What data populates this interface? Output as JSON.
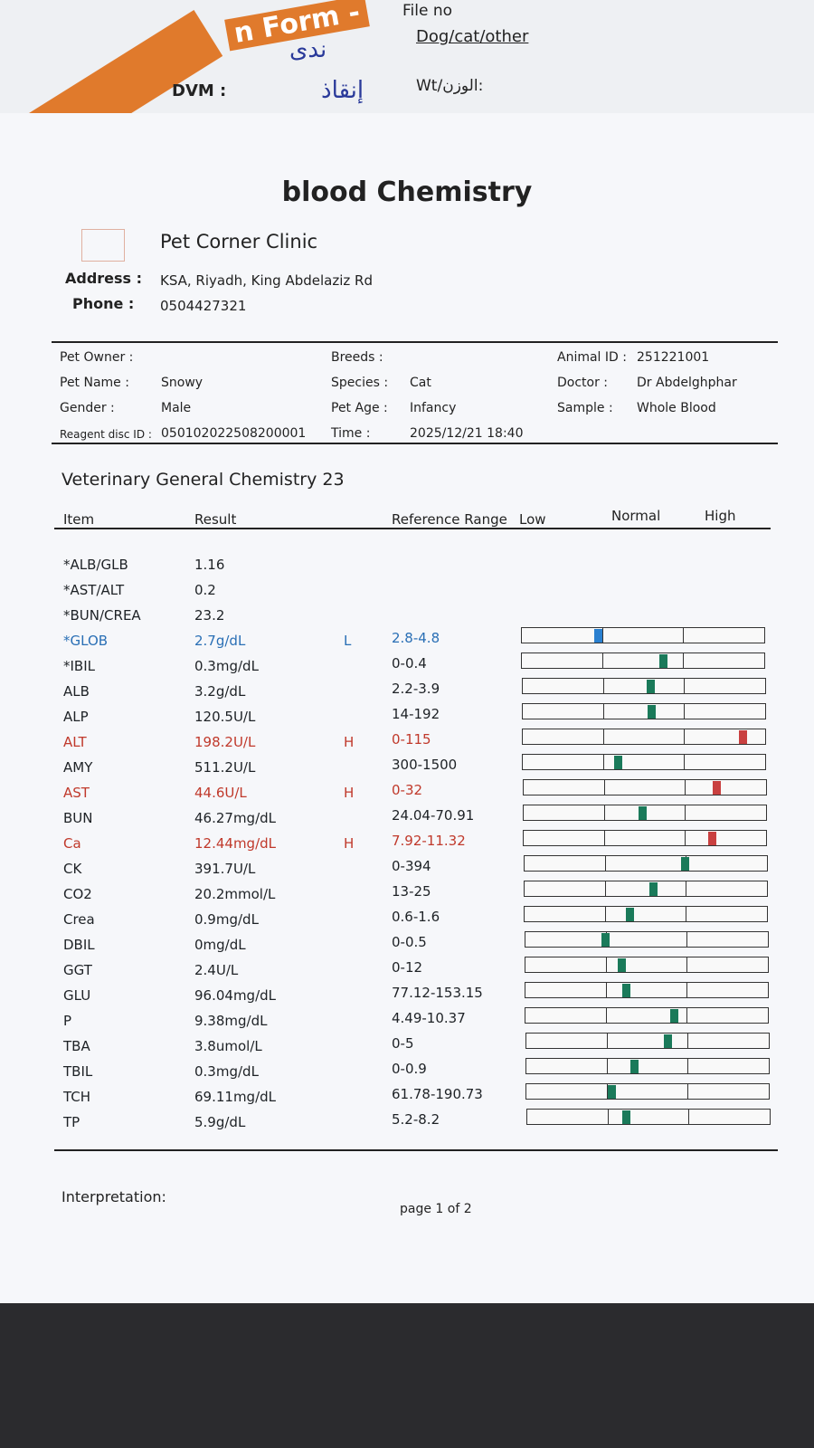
{
  "background": {
    "form_title": "n Form -",
    "file_no": "File no",
    "species_options": "Dog/cat/other",
    "dvm": "DVM :",
    "weight": "Wt/الوزن:",
    "handwriting": [
      "ندى",
      "إنقاذ"
    ]
  },
  "header": {
    "title": "blood Chemistry",
    "clinic": "Pet Corner Clinic",
    "address_label": "Address :",
    "address": "KSA, Riyadh, King Abdelaziz Rd",
    "phone_label": "Phone :",
    "phone": "0504427321"
  },
  "info": [
    [
      {
        "label": "Pet Owner :"
      },
      {
        "label": "Breeds :"
      },
      {
        "label": "Animal ID :",
        "value": "251221001"
      }
    ],
    [
      {
        "label": "Pet Name :",
        "value": "Snowy"
      },
      {
        "label": "Species :",
        "value": "Cat"
      },
      {
        "label": "Doctor :",
        "value": "Dr Abdelghphar"
      }
    ],
    [
      {
        "label": "Gender :",
        "value": "Male"
      },
      {
        "label": "Pet Age :",
        "value": "Infancy"
      },
      {
        "label": "Sample :",
        "value": "Whole Blood"
      }
    ],
    [
      {
        "label": "Reagent disc ID :",
        "value": "050102022508200001"
      },
      {
        "label": "Time :",
        "value": "2025/12/21 18:40"
      }
    ]
  ],
  "section_title": "Veterinary General Chemistry 23",
  "columns": {
    "item": "Item",
    "result": "Result",
    "range": "Reference Range",
    "low": "Low",
    "normal": "Normal",
    "high": "High"
  },
  "rows": [
    {
      "item": "*ALB/GLB",
      "result": "1.16"
    },
    {
      "item": "*AST/ALT",
      "result": "0.2"
    },
    {
      "item": "*BUN/CREA",
      "result": "23.2"
    },
    {
      "item": "*GLOB",
      "result": "2.7g/dL",
      "flag": "L",
      "range": "2.8-4.8"
    },
    {
      "item": "*IBIL",
      "result": "0.3mg/dL",
      "range": "0-0.4"
    },
    {
      "item": "ALB",
      "result": "3.2g/dL",
      "range": "2.2-3.9"
    },
    {
      "item": "ALP",
      "result": "120.5U/L",
      "range": "14-192"
    },
    {
      "item": "ALT",
      "result": "198.2U/L",
      "flag": "H",
      "range": "0-115"
    },
    {
      "item": "AMY",
      "result": "511.2U/L",
      "range": "300-1500"
    },
    {
      "item": "AST",
      "result": "44.6U/L",
      "flag": "H",
      "range": "0-32"
    },
    {
      "item": "BUN",
      "result": "46.27mg/dL",
      "range": "24.04-70.91"
    },
    {
      "item": "Ca",
      "result": "12.44mg/dL",
      "flag": "H",
      "range": "7.92-11.32"
    },
    {
      "item": "CK",
      "result": "391.7U/L",
      "range": "0-394"
    },
    {
      "item": "CO2",
      "result": "20.2mmol/L",
      "range": "13-25"
    },
    {
      "item": "Crea",
      "result": "0.9mg/dL",
      "range": "0.6-1.6"
    },
    {
      "item": "DBIL",
      "result": "0mg/dL",
      "range": "0-0.5"
    },
    {
      "item": "GGT",
      "result": "2.4U/L",
      "range": "0-12"
    },
    {
      "item": "GLU",
      "result": "96.04mg/dL",
      "range": "77.12-153.15"
    },
    {
      "item": "P",
      "result": "9.38mg/dL",
      "range": "4.49-10.37"
    },
    {
      "item": "TBA",
      "result": "3.8umol/L",
      "range": "0-5"
    },
    {
      "item": "TBIL",
      "result": "0.3mg/dL",
      "range": "0-0.9"
    },
    {
      "item": "TCH",
      "result": "69.11mg/dL",
      "range": "61.78-190.73"
    },
    {
      "item": "TP",
      "result": "5.9g/dL",
      "range": "5.2-8.2"
    }
  ],
  "footer": {
    "interpretation": "Interpretation:",
    "page": "page 1 of 2"
  }
}
